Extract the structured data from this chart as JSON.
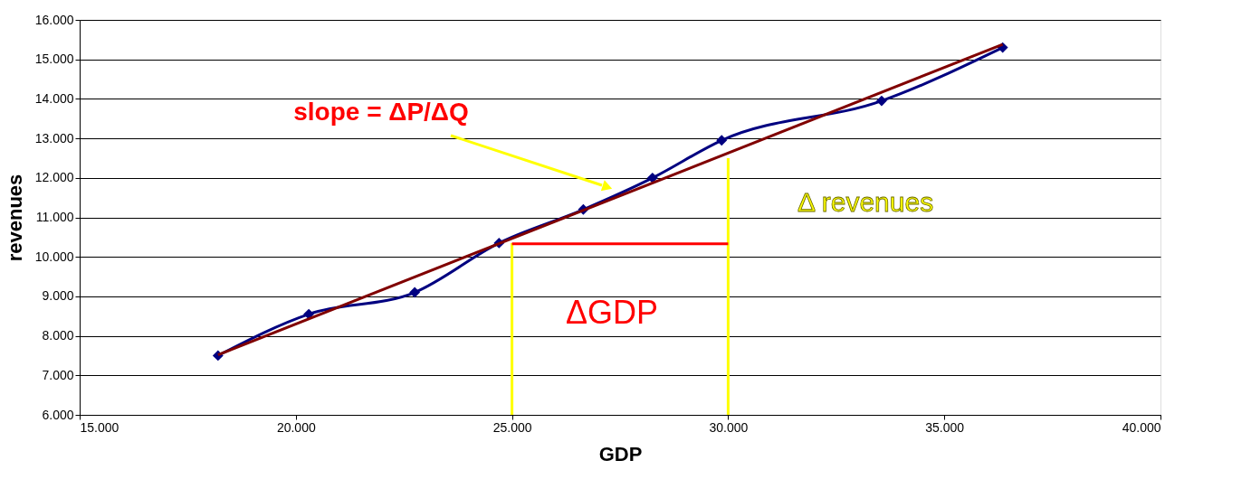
{
  "chart_data": {
    "type": "line",
    "xlabel": "GDP",
    "ylabel": "revenues",
    "xlim": [
      15000,
      40000
    ],
    "ylim": [
      6000,
      16000
    ],
    "xticks": [
      {
        "value": 15000,
        "label": "15.000"
      },
      {
        "value": 20000,
        "label": "20.000"
      },
      {
        "value": 25000,
        "label": "25.000"
      },
      {
        "value": 30000,
        "label": "30.000"
      },
      {
        "value": 35000,
        "label": "35.000"
      },
      {
        "value": 40000,
        "label": "40.000"
      }
    ],
    "yticks": [
      {
        "value": 6000,
        "label": "6.000"
      },
      {
        "value": 7000,
        "label": "7.000"
      },
      {
        "value": 8000,
        "label": "8.000"
      },
      {
        "value": 9000,
        "label": "9.000"
      },
      {
        "value": 10000,
        "label": "10.000"
      },
      {
        "value": 11000,
        "label": "11.000"
      },
      {
        "value": 12000,
        "label": "12.000"
      },
      {
        "value": 13000,
        "label": "13.000"
      },
      {
        "value": 14000,
        "label": "14.000"
      },
      {
        "value": 15000,
        "label": "15.000"
      },
      {
        "value": 16000,
        "label": "16.000"
      }
    ],
    "grid": "y",
    "legend": false,
    "series": [
      {
        "color": "#000080",
        "marker": "diamond",
        "x": [
          18200,
          20300,
          22750,
          24700,
          26650,
          28250,
          29850,
          33550,
          36350
        ],
        "values": [
          7500,
          8550,
          9100,
          10350,
          11200,
          12000,
          12950,
          13950,
          15300
        ]
      },
      {
        "color": "#800000",
        "marker": "none",
        "x": [
          18200,
          36350
        ],
        "values": [
          7520,
          15380
        ]
      },
      {
        "color": "#ffff00",
        "marker": "none",
        "x": [
          25000,
          25000
        ],
        "values": [
          6000,
          10350
        ]
      },
      {
        "color": "#ffff00",
        "marker": "none",
        "x": [
          30000,
          30000
        ],
        "values": [
          6000,
          12500
        ]
      },
      {
        "color": "#ff0000",
        "marker": "none",
        "x": [
          25000,
          30000
        ],
        "values": [
          10330,
          10330
        ]
      }
    ],
    "annotations": [
      "slope = ΔP/ΔQ",
      "Δ  revenues",
      "ΔGDP"
    ]
  }
}
